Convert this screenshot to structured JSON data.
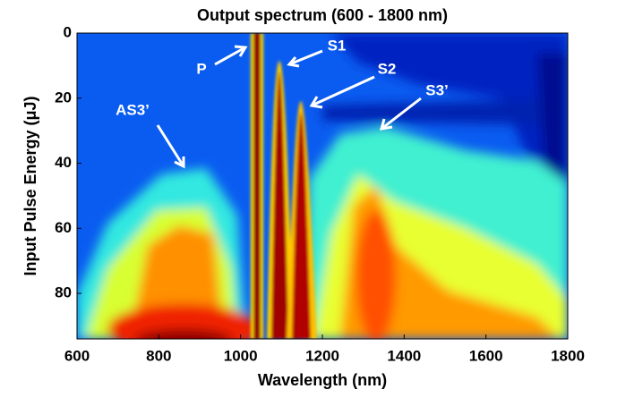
{
  "chart_data": {
    "type": "heatmap",
    "title": "Output spectrum (600 - 1800 nm)",
    "x_label": "Wavelength (nm)",
    "y_label": "Input Pulse Energy (μJ)",
    "xlim": [
      600,
      1800
    ],
    "xticks": [
      600,
      800,
      1000,
      1200,
      1400,
      1600,
      1800
    ],
    "ylim": [
      0,
      94
    ],
    "yticks": [
      0,
      20,
      40,
      60,
      80
    ],
    "y_reversed": true,
    "annotations": [
      "P",
      "S1",
      "S2",
      "S3’",
      "AS3’"
    ]
  }
}
